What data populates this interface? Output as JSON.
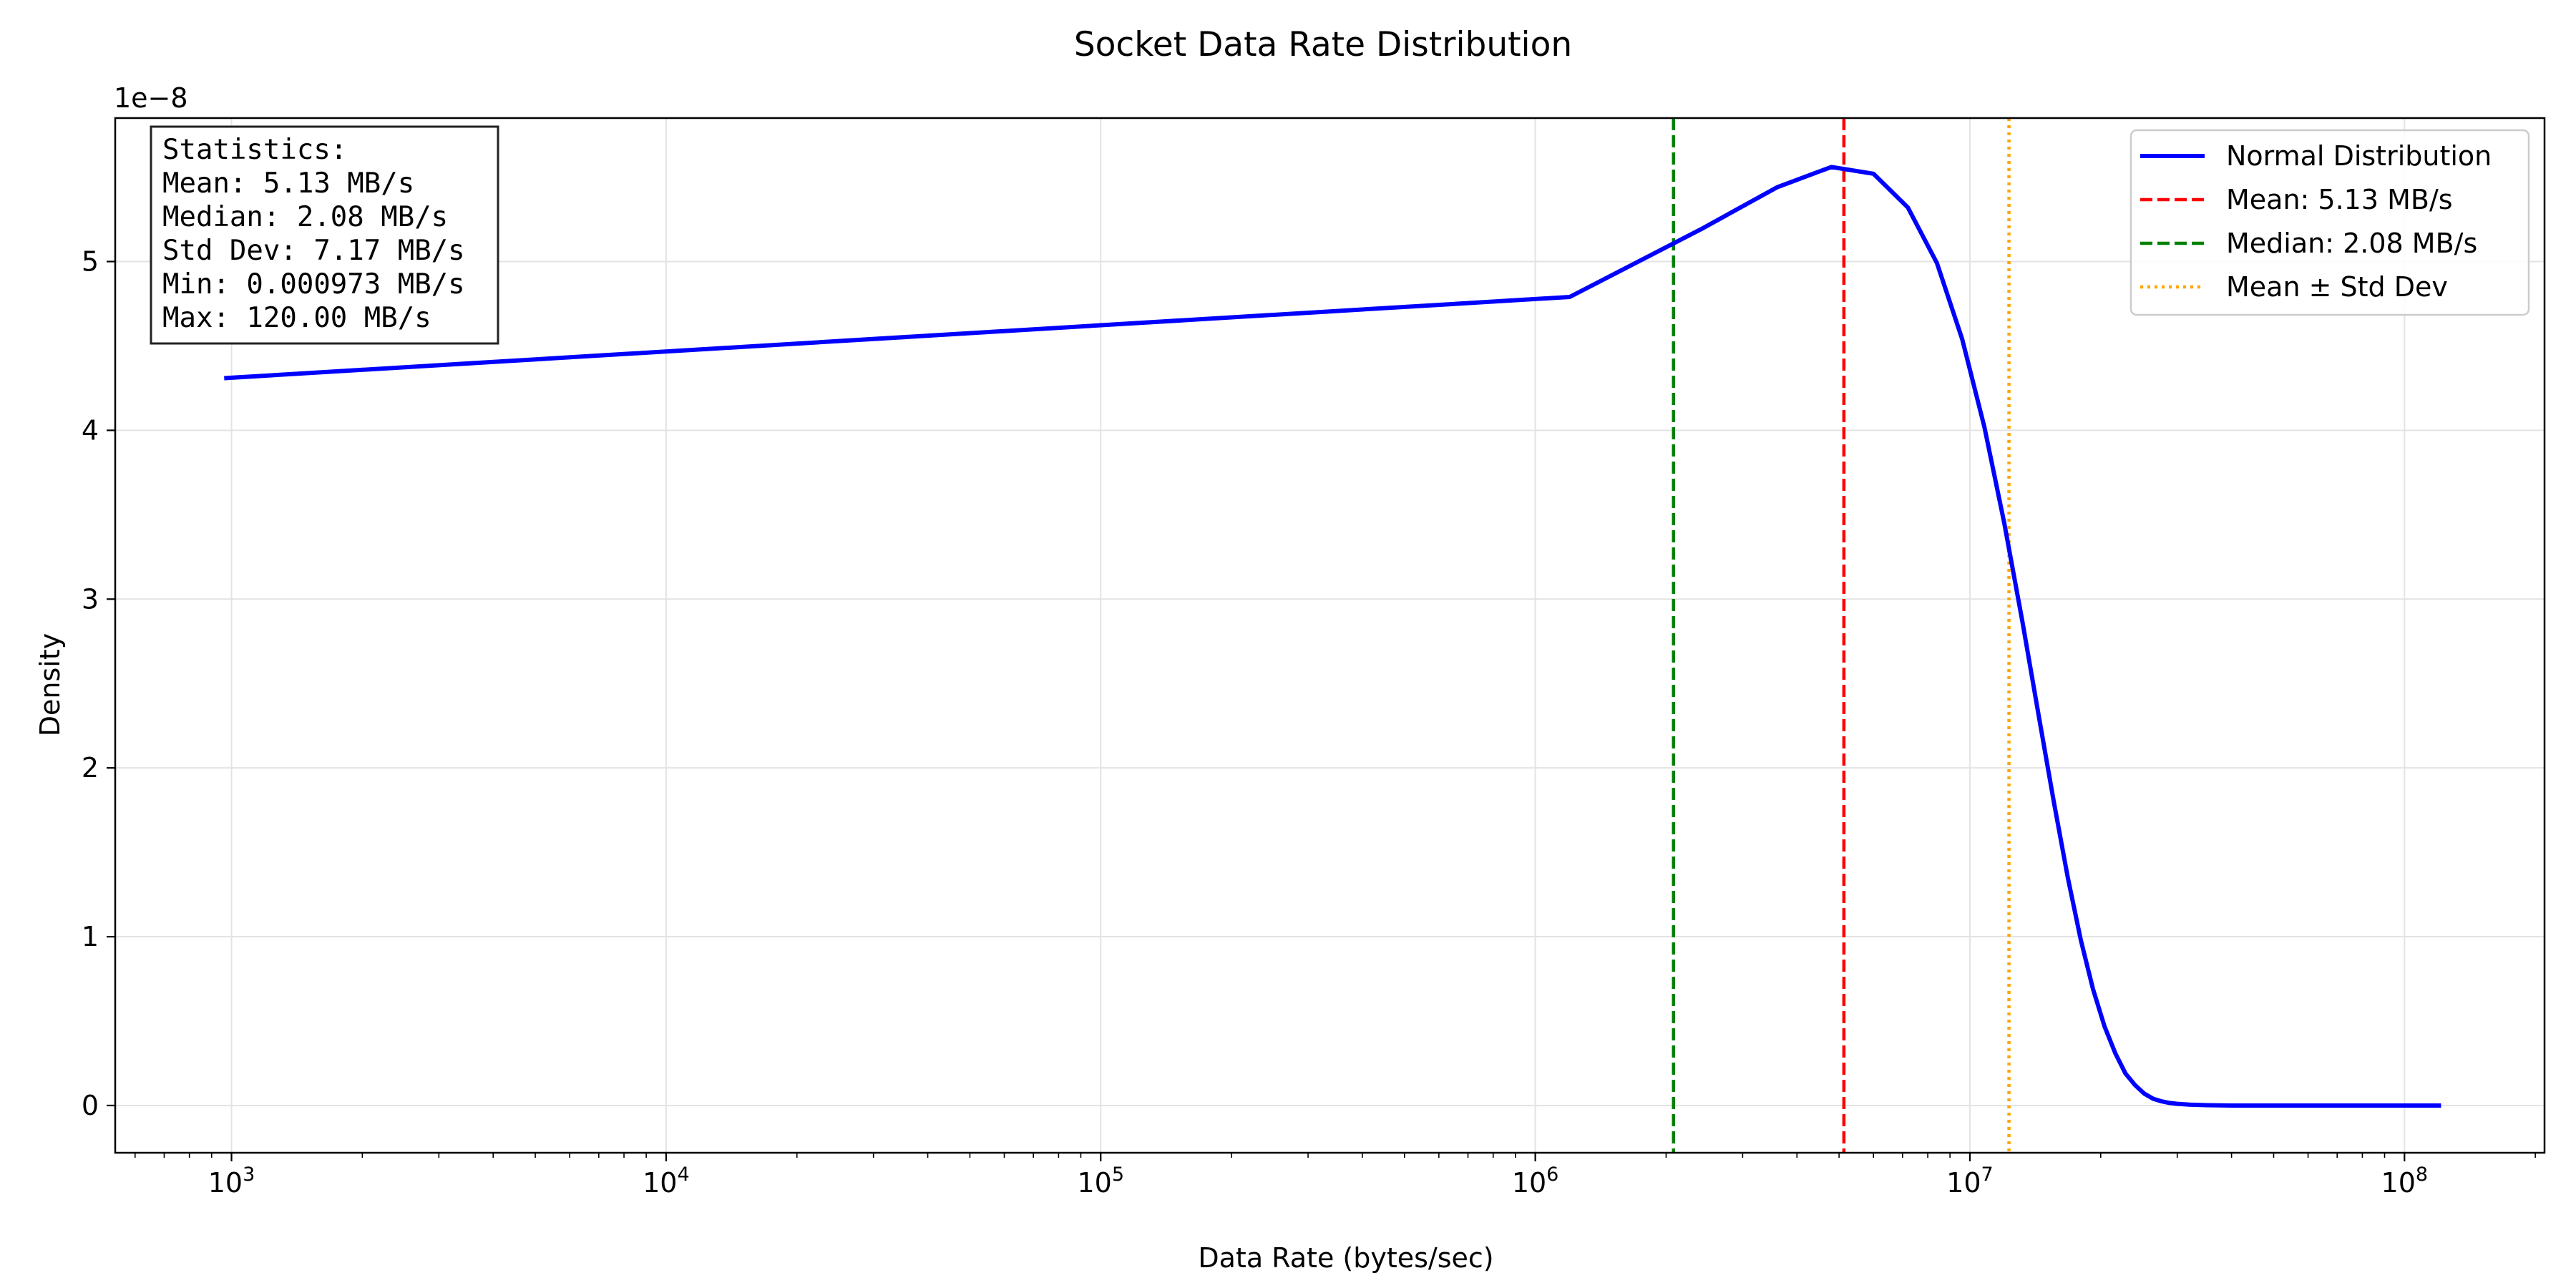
{
  "chart_data": {
    "type": "line",
    "title": "Socket Data Rate Distribution",
    "xlabel": "Data Rate (bytes/sec)",
    "ylabel": "Density",
    "x_scale": "log",
    "y_offset_label": "1e−8",
    "xlim": [
      540,
      210000000
    ],
    "ylim": [
      -0.28,
      5.85
    ],
    "x_ticks": [
      {
        "value": 1000,
        "label_base": "10",
        "label_exp": "3"
      },
      {
        "value": 10000,
        "label_base": "10",
        "label_exp": "4"
      },
      {
        "value": 100000,
        "label_base": "10",
        "label_exp": "5"
      },
      {
        "value": 1000000,
        "label_base": "10",
        "label_exp": "6"
      },
      {
        "value": 10000000,
        "label_base": "10",
        "label_exp": "7"
      },
      {
        "value": 100000000,
        "label_base": "10",
        "label_exp": "8"
      }
    ],
    "y_ticks": [
      {
        "value": 0,
        "label": "0"
      },
      {
        "value": 1,
        "label": "1"
      },
      {
        "value": 2,
        "label": "2"
      },
      {
        "value": 3,
        "label": "3"
      },
      {
        "value": 4,
        "label": "4"
      },
      {
        "value": 5,
        "label": "5"
      }
    ],
    "grid": true,
    "legend_position": "top-right",
    "series": [
      {
        "name": "Normal Distribution",
        "color": "#0000ff",
        "style": "solid",
        "x": [
          973,
          1200000,
          2400000,
          3600000,
          4800000,
          6000000,
          7200000,
          8400000,
          9600000,
          10800000,
          12000000,
          13200000,
          14400000,
          15600000,
          16800000,
          18000000,
          19200000,
          20400000,
          21600000,
          22800000,
          24000000,
          25200000,
          26400000,
          27600000,
          28800000,
          30000000,
          32000000,
          35000000,
          40000000,
          60000000,
          120000000
        ],
        "y": [
          4.31,
          4.79,
          5.19,
          5.44,
          5.56,
          5.52,
          5.32,
          4.99,
          4.54,
          4.02,
          3.45,
          2.87,
          2.31,
          1.8,
          1.35,
          0.98,
          0.69,
          0.47,
          0.31,
          0.19,
          0.12,
          0.07,
          0.04,
          0.025,
          0.015,
          0.01,
          0.005,
          0.002,
          0.0,
          0.0,
          0.0
        ]
      }
    ],
    "reference_lines": [
      {
        "name": "Mean: 5.13 MB/s",
        "x": 5130000,
        "color": "#ff0000",
        "style": "dashed"
      },
      {
        "name": "Median: 2.08 MB/s",
        "x": 2080000,
        "color": "#008000",
        "style": "dashed"
      },
      {
        "name": "Mean ± Std Dev",
        "x": 12300000,
        "color": "#ffa500",
        "style": "dotted"
      }
    ],
    "stats_box": [
      "Statistics:",
      "Mean: 5.13 MB/s",
      "Median: 2.08 MB/s",
      "Std Dev: 7.17 MB/s",
      "Min: 0.000973 MB/s",
      "Max: 120.00 MB/s"
    ]
  }
}
